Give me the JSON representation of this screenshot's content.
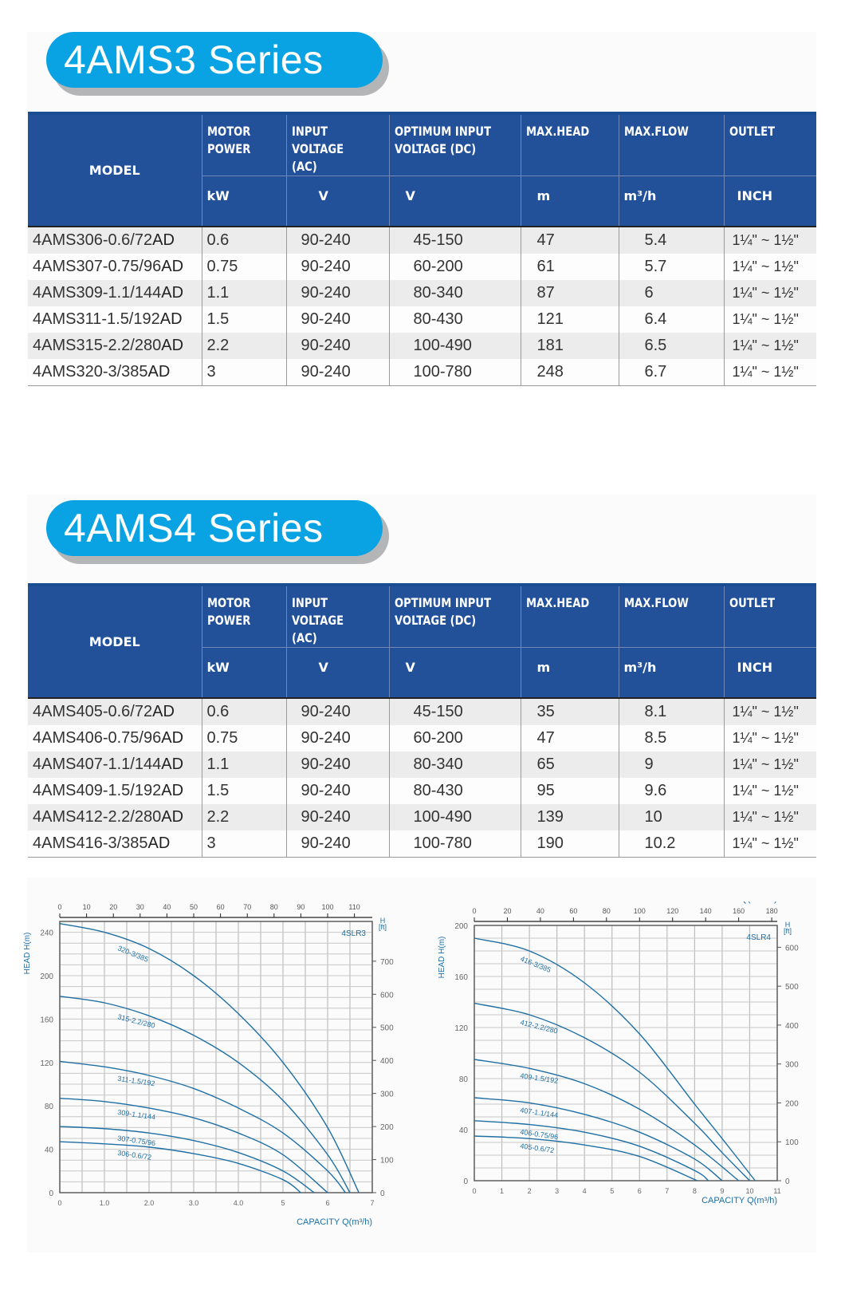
{
  "sections": [
    {
      "title": "4AMS3 Series",
      "columns": {
        "model": "MODEL",
        "motor_power": [
          "MOTOR",
          "POWER"
        ],
        "input_voltage": [
          "INPUT",
          "VOLTAGE (AC)"
        ],
        "optimum_voltage": [
          "OPTIMUM INPUT",
          "VOLTAGE (DC)"
        ],
        "max_head": "MAX.HEAD",
        "max_flow": "MAX.FLOW",
        "outlet": "OUTLET"
      },
      "units": {
        "motor_power": "kW",
        "input_voltage": "V",
        "optimum_voltage": "V",
        "max_head": "m",
        "max_flow": "m³/h",
        "outlet": "INCH"
      },
      "rows": [
        {
          "model": "4AMS306-0.6/72",
          "suffix": "AD",
          "power": "0.6",
          "ac": "90-240",
          "dc": "45-150",
          "head": "47",
          "flow": "5.4",
          "outlet": "1¼\" ~ 1½\""
        },
        {
          "model": "4AMS307-0.75/96",
          "suffix": "AD",
          "power": "0.75",
          "ac": "90-240",
          "dc": "60-200",
          "head": "61",
          "flow": "5.7",
          "outlet": "1¼\" ~ 1½\""
        },
        {
          "model": "4AMS309-1.1/144",
          "suffix": "AD",
          "power": "1.1",
          "ac": "90-240",
          "dc": "80-340",
          "head": "87",
          "flow": "6",
          "outlet": "1¼\" ~ 1½\""
        },
        {
          "model": "4AMS311-1.5/192",
          "suffix": "AD",
          "power": "1.5",
          "ac": "90-240",
          "dc": "80-430",
          "head": "121",
          "flow": "6.4",
          "outlet": "1¼\" ~ 1½\""
        },
        {
          "model": "4AMS315-2.2/280",
          "suffix": "AD",
          "power": "2.2",
          "ac": "90-240",
          "dc": "100-490",
          "head": "181",
          "flow": "6.5",
          "outlet": "1¼\" ~ 1½\""
        },
        {
          "model": "4AMS320-3/385",
          "suffix": "AD",
          "power": "3",
          "ac": "90-240",
          "dc": "100-780",
          "head": "248",
          "flow": "6.7",
          "outlet": "1¼\" ~ 1½\""
        }
      ]
    },
    {
      "title": "4AMS4 Series",
      "columns": {
        "model": "MODEL",
        "motor_power": [
          "MOTOR",
          "POWER"
        ],
        "input_voltage": [
          "INPUT",
          "VOLTAGE (AC)"
        ],
        "optimum_voltage": [
          "OPTIMUM INPUT",
          "VOLTAGE (DC)"
        ],
        "max_head": "MAX.HEAD",
        "max_flow": "MAX.FLOW",
        "outlet": "OUTLET"
      },
      "units": {
        "motor_power": "kW",
        "input_voltage": "V",
        "optimum_voltage": "V",
        "max_head": "m",
        "max_flow": "m³/h",
        "outlet": "INCH"
      },
      "rows": [
        {
          "model": "4AMS405-0.6/72",
          "suffix": "AD",
          "power": "0.6",
          "ac": "90-240",
          "dc": "45-150",
          "head": "35",
          "flow": "8.1",
          "outlet": "1¼\" ~ 1½\""
        },
        {
          "model": "4AMS406-0.75/96",
          "suffix": "AD",
          "power": "0.75",
          "ac": "90-240",
          "dc": "60-200",
          "head": "47",
          "flow": "8.5",
          "outlet": "1¼\" ~ 1½\""
        },
        {
          "model": "4AMS407-1.1/144",
          "suffix": "AD",
          "power": "1.1",
          "ac": "90-240",
          "dc": "80-340",
          "head": "65",
          "flow": "9",
          "outlet": "1¼\" ~ 1½\""
        },
        {
          "model": "4AMS409-1.5/192",
          "suffix": "AD",
          "power": "1.5",
          "ac": "90-240",
          "dc": "80-430",
          "head": "95",
          "flow": "9.6",
          "outlet": "1¼\" ~ 1½\""
        },
        {
          "model": "4AMS412-2.2/280",
          "suffix": "AD",
          "power": "2.2",
          "ac": "90-240",
          "dc": "100-490",
          "head": "139",
          "flow": "10",
          "outlet": "1¼\" ~ 1½\""
        },
        {
          "model": "4AMS416-3/385",
          "suffix": "AD",
          "power": "3",
          "ac": "90-240",
          "dc": "100-780",
          "head": "190",
          "flow": "10.2",
          "outlet": "1¼\" ~ 1½\""
        }
      ]
    }
  ],
  "chart_data": [
    {
      "type": "line",
      "title": "4SLR3",
      "xlabel": "CAPACITY Q(m³/h)",
      "x2label": "Q(L/min)",
      "ylabel": "HEAD H(m)",
      "y2label": "H [ft]",
      "xlim": [
        0,
        7
      ],
      "ylim": [
        0,
        250
      ],
      "x_ticks": [
        "0",
        "1.0",
        "2.0",
        "3.0",
        "4.0",
        "5",
        "6",
        "7"
      ],
      "x2_ticks": [
        "0",
        "10",
        "20",
        "30",
        "40",
        "50",
        "60",
        "70",
        "80",
        "90",
        "100",
        "110"
      ],
      "y_ticks": [
        "0",
        "40",
        "80",
        "120",
        "160",
        "200",
        "240"
      ],
      "y2_ticks": [
        "0",
        "100",
        "200",
        "300",
        "400",
        "500",
        "600",
        "700"
      ],
      "grid": true,
      "color": "#1e6fa3",
      "series": [
        {
          "name": "320-3/385",
          "x": [
            0,
            1,
            2,
            3,
            4,
            5,
            6,
            6.7
          ],
          "values": [
            248,
            240,
            225,
            200,
            165,
            120,
            60,
            0
          ]
        },
        {
          "name": "315-2.2/280",
          "x": [
            0,
            1,
            2,
            3,
            4,
            5,
            6,
            6.5
          ],
          "values": [
            181,
            175,
            163,
            145,
            120,
            85,
            35,
            0
          ]
        },
        {
          "name": "311-1.5/192",
          "x": [
            0,
            1,
            2,
            3,
            4,
            5,
            6,
            6.4
          ],
          "values": [
            121,
            116,
            108,
            96,
            78,
            55,
            20,
            0
          ]
        },
        {
          "name": "309-1.1/144",
          "x": [
            0,
            1,
            2,
            3,
            4,
            5,
            6
          ],
          "values": [
            87,
            84,
            78,
            69,
            55,
            35,
            0
          ]
        },
        {
          "name": "307-0.75/96",
          "x": [
            0,
            1,
            2,
            3,
            4,
            5,
            5.7
          ],
          "values": [
            61,
            59,
            55,
            48,
            37,
            20,
            0
          ]
        },
        {
          "name": "306-0.6/72",
          "x": [
            0,
            1,
            2,
            3,
            4,
            5,
            5.4
          ],
          "values": [
            47,
            45,
            42,
            36,
            27,
            12,
            0
          ]
        }
      ]
    },
    {
      "type": "line",
      "title": "4SLR4",
      "xlabel": "CAPACITY Q(m³/h)",
      "x2label": "Q(L/min)",
      "ylabel": "HEAD H(m)",
      "y2label": "H [ft]",
      "xlim": [
        0,
        11
      ],
      "ylim": [
        0,
        200
      ],
      "x_ticks": [
        "0",
        "1",
        "2",
        "3",
        "4",
        "5",
        "6",
        "7",
        "8",
        "9",
        "10",
        "11"
      ],
      "x2_ticks": [
        "0",
        "20",
        "40",
        "60",
        "80",
        "100",
        "120",
        "140",
        "160",
        "180"
      ],
      "y_ticks": [
        "0",
        "40",
        "80",
        "120",
        "160",
        "200"
      ],
      "y2_ticks": [
        "0",
        "100",
        "200",
        "300",
        "400",
        "500",
        "600"
      ],
      "grid": true,
      "color": "#1e6fa3",
      "series": [
        {
          "name": "416-3/385",
          "x": [
            0,
            2,
            4,
            6,
            8,
            9,
            10.2
          ],
          "values": [
            190,
            180,
            155,
            115,
            60,
            33,
            0
          ]
        },
        {
          "name": "412-2.2/280",
          "x": [
            0,
            2,
            4,
            6,
            8,
            9,
            10
          ],
          "values": [
            139,
            130,
            112,
            85,
            45,
            22,
            0
          ]
        },
        {
          "name": "409-1.5/192",
          "x": [
            0,
            2,
            4,
            6,
            8,
            9.6
          ],
          "values": [
            95,
            88,
            76,
            56,
            28,
            0
          ]
        },
        {
          "name": "407-1.1/144",
          "x": [
            0,
            2,
            4,
            6,
            8,
            9
          ],
          "values": [
            65,
            61,
            52,
            38,
            17,
            0
          ]
        },
        {
          "name": "406-0.75/96",
          "x": [
            0,
            2,
            4,
            6,
            8,
            8.5
          ],
          "values": [
            47,
            44,
            38,
            27,
            8,
            0
          ]
        },
        {
          "name": "405-0.6/72",
          "x": [
            0,
            2,
            4,
            6,
            8.1
          ],
          "values": [
            35,
            33,
            28,
            19,
            0
          ]
        }
      ]
    }
  ]
}
